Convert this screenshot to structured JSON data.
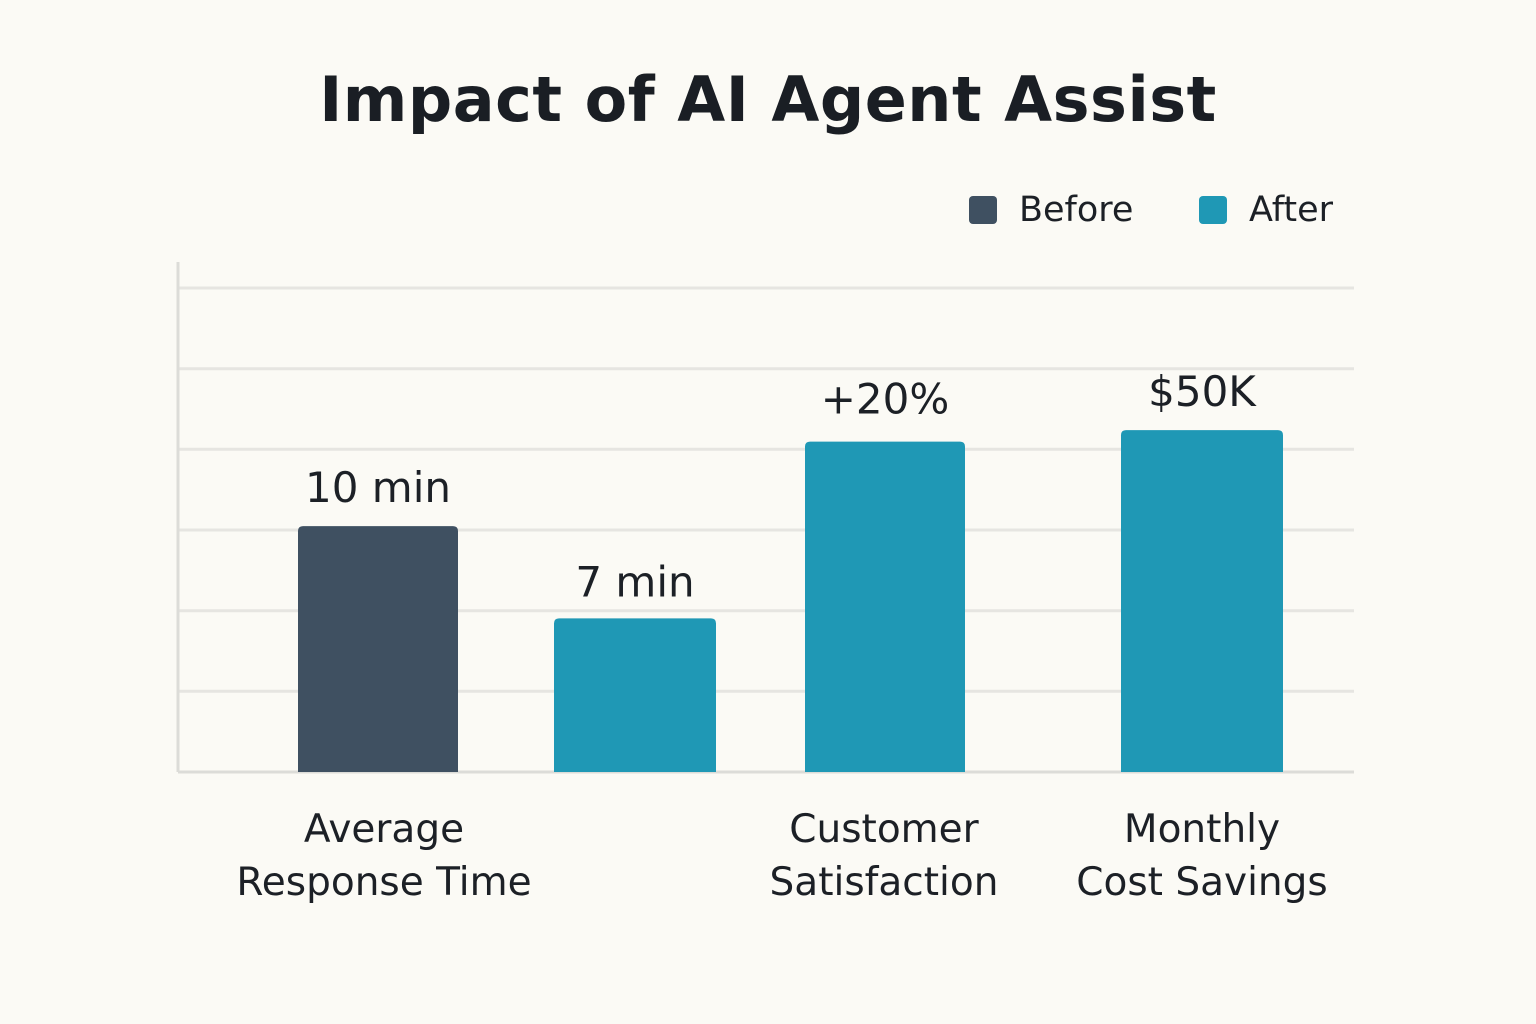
{
  "chart_data": {
    "type": "bar",
    "title": "Impact of AI Agent Assist",
    "xlabel": "",
    "ylabel": "",
    "legend": {
      "placement": "top-right",
      "items": [
        {
          "name": "Before",
          "color": "#3f5061"
        },
        {
          "name": "After",
          "color": "#1f98b5"
        }
      ]
    },
    "grid": true,
    "ylim": [
      0,
      6.3
    ],
    "bars": [
      {
        "series": "Before",
        "value": 3.2,
        "label": "10 min"
      },
      {
        "series": "After",
        "value": 2.0,
        "label": "7 min"
      },
      {
        "series": "After",
        "value": 4.3,
        "label": "+20%"
      },
      {
        "series": "After",
        "value": 4.45,
        "label": "$50K"
      }
    ],
    "category_labels": [
      {
        "line1": "Average",
        "line2": "Response Time"
      },
      {
        "line1": "Customer",
        "line2": "Satisfaction"
      },
      {
        "line1": "Monthly",
        "line2": "Cost Savings"
      }
    ]
  },
  "colors": {
    "background": "#fbfaf5",
    "grid": "#e6e5e1",
    "axis": "#dcdcd8",
    "text": "#1c2026"
  }
}
